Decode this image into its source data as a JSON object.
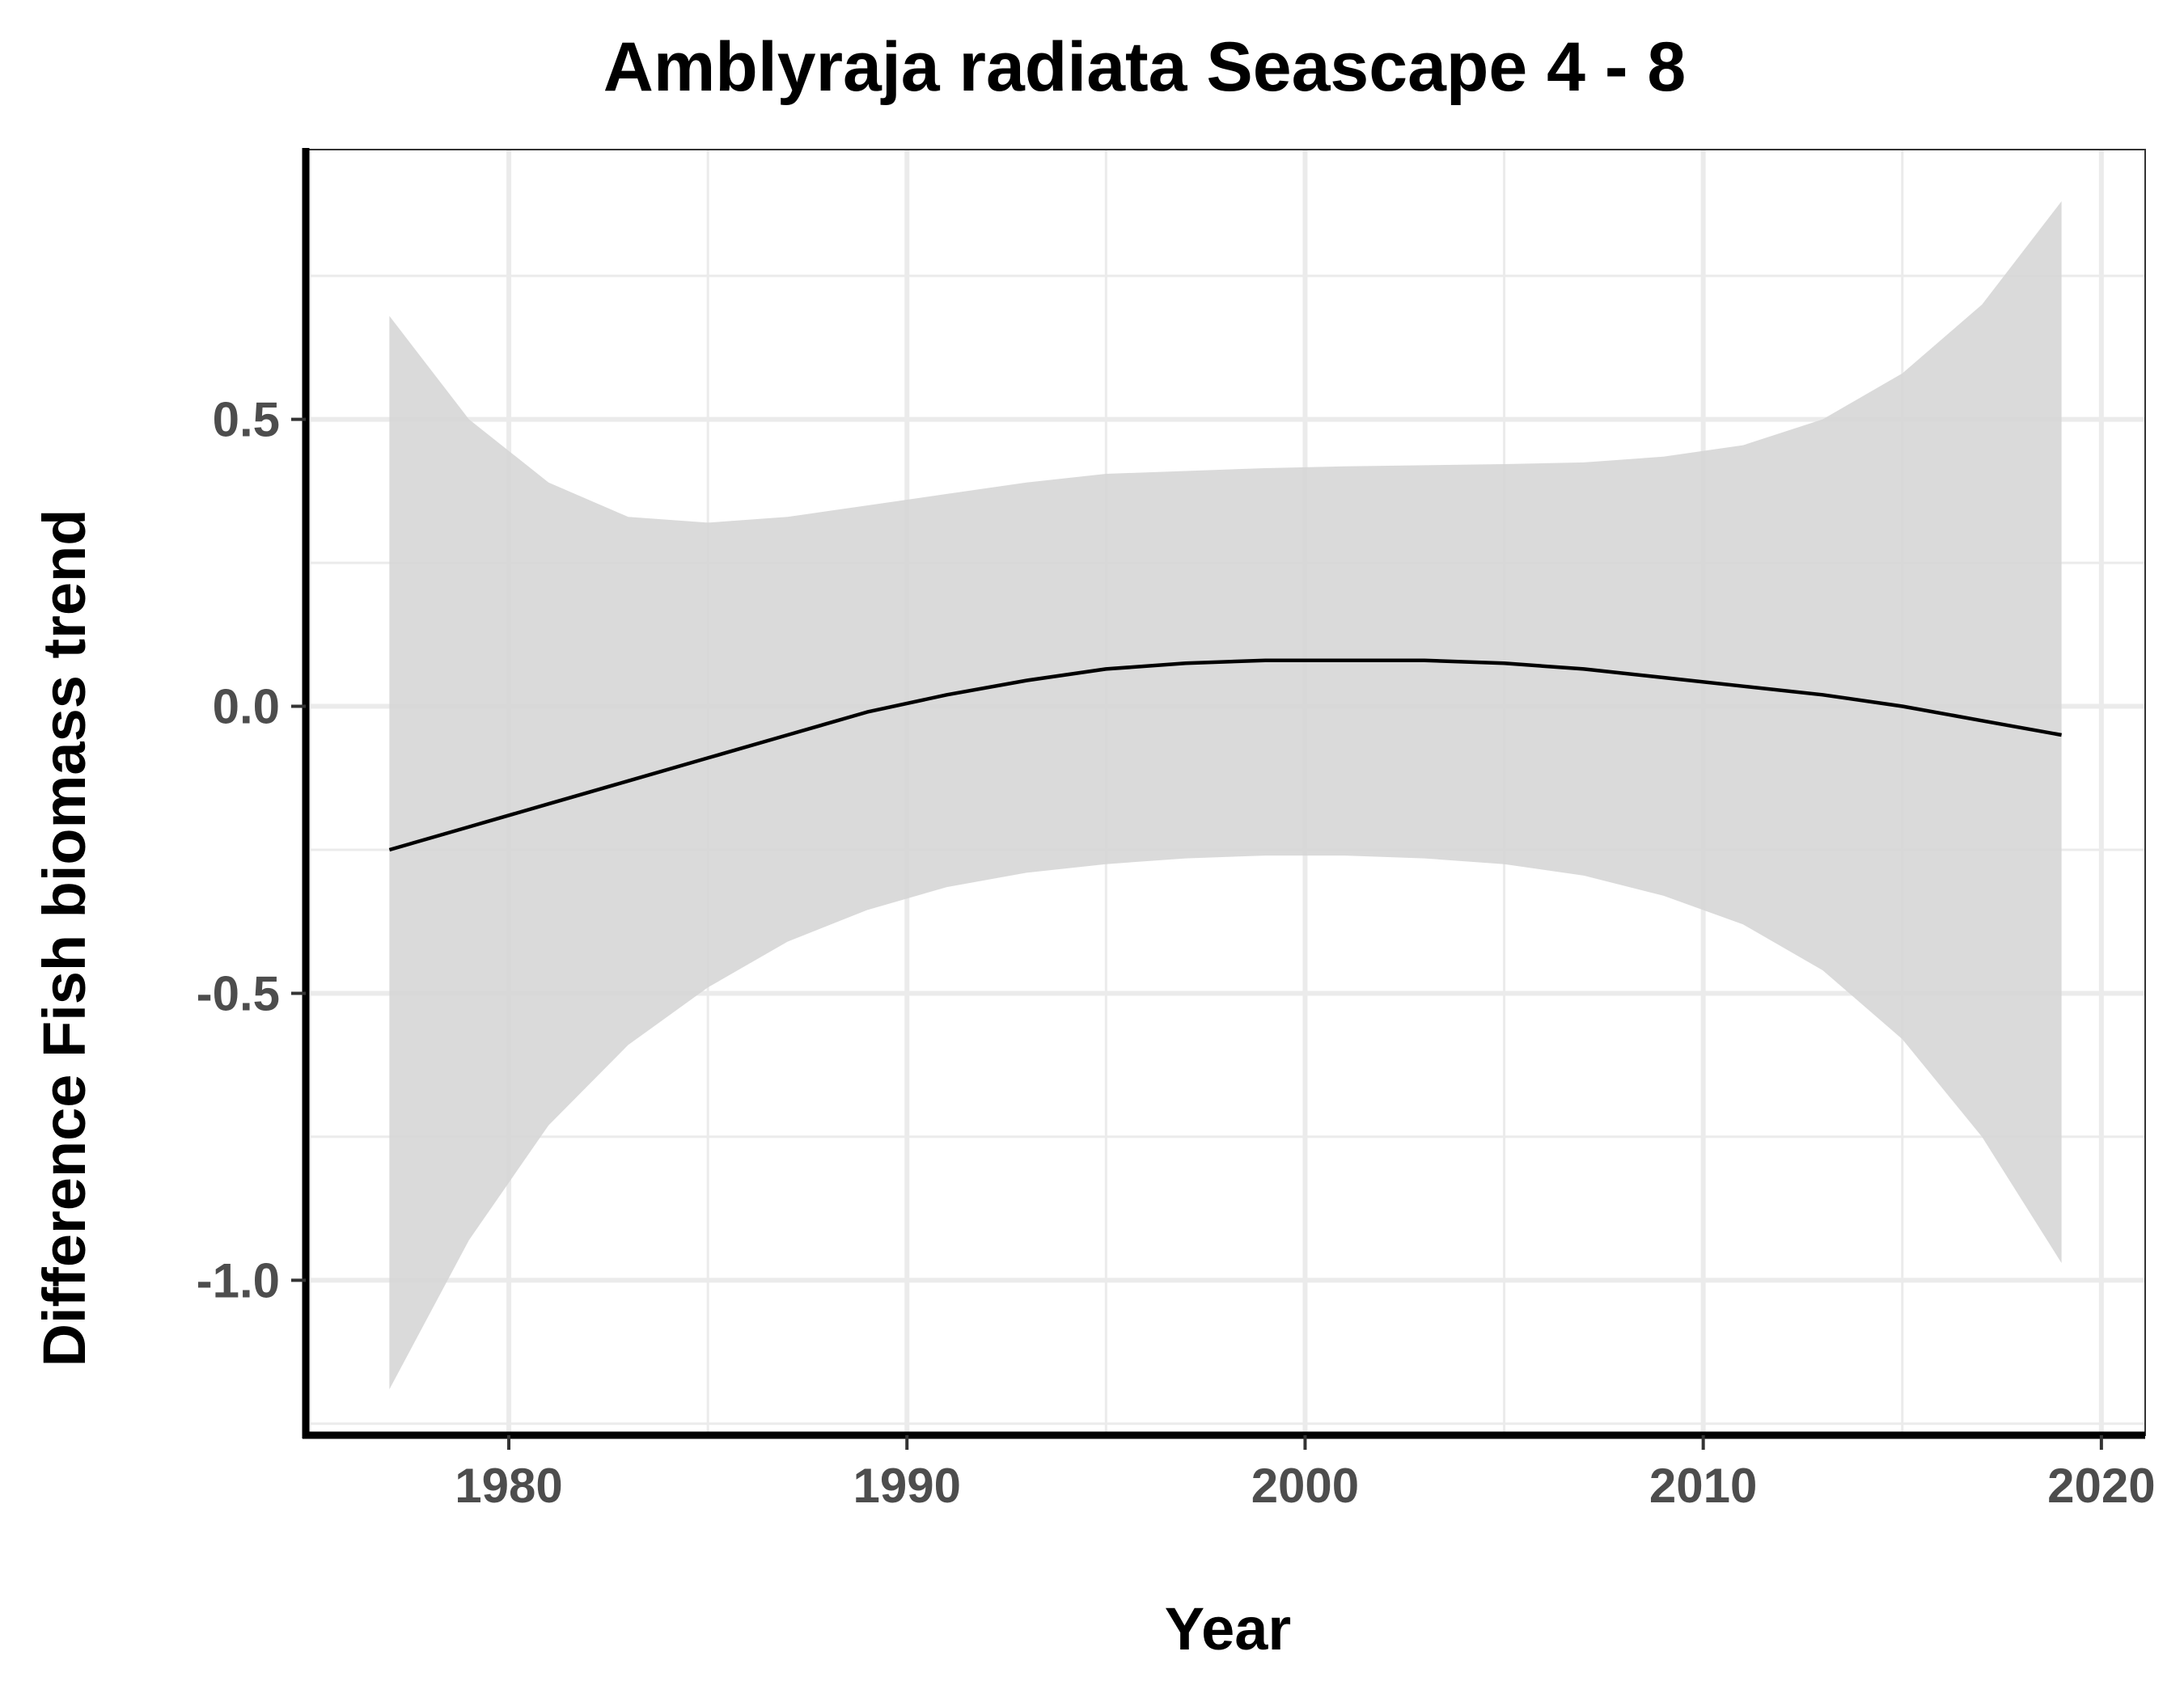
{
  "chart_data": {
    "type": "line",
    "title": "Amblyraja radiata Seascape 4 - 8",
    "xlabel": "Year",
    "ylabel": "Difference Fish biomass trend",
    "xlim": [
      1974.9,
      2021.1
    ],
    "ylim": [
      -1.27,
      0.97
    ],
    "x_ticks": [
      1980,
      1990,
      2000,
      2010,
      2020
    ],
    "x_tick_labels": [
      "1980",
      "1990",
      "2000",
      "2010",
      "2020"
    ],
    "y_ticks": [
      -1.0,
      -0.5,
      0.0,
      0.5
    ],
    "y_tick_labels": [
      "-1.0",
      "-0.5",
      "0.0",
      "0.5"
    ],
    "x_minor": [
      1975,
      1985,
      1995,
      2005,
      2015
    ],
    "y_minor": [
      -1.25,
      -0.75,
      -0.25,
      0.25,
      0.75
    ],
    "grid": true,
    "series": [
      {
        "kind": "fit",
        "x": [
          1977,
          1979,
          1981,
          1983,
          1985,
          1987,
          1989,
          1991,
          1993,
          1995,
          1997,
          1999,
          2001,
          2003,
          2005,
          2007,
          2009,
          2011,
          2013,
          2015,
          2017,
          2019
        ],
        "y": [
          -0.25,
          -0.21,
          -0.17,
          -0.13,
          -0.09,
          -0.05,
          -0.01,
          0.02,
          0.045,
          0.065,
          0.075,
          0.08,
          0.08,
          0.08,
          0.075,
          0.065,
          0.05,
          0.035,
          0.02,
          0.0,
          -0.025,
          -0.05
        ]
      },
      {
        "kind": "confidence-band",
        "x": [
          1977,
          1979,
          1981,
          1983,
          1985,
          1987,
          1989,
          1991,
          1993,
          1995,
          1997,
          1999,
          2001,
          2003,
          2005,
          2007,
          2009,
          2011,
          2013,
          2015,
          2017,
          2019
        ],
        "upper": [
          0.68,
          0.5,
          0.39,
          0.33,
          0.32,
          0.33,
          0.35,
          0.37,
          0.39,
          0.405,
          0.41,
          0.415,
          0.418,
          0.42,
          0.422,
          0.425,
          0.435,
          0.455,
          0.5,
          0.58,
          0.7,
          0.88
        ],
        "lower": [
          -1.19,
          -0.93,
          -0.73,
          -0.59,
          -0.49,
          -0.41,
          -0.355,
          -0.315,
          -0.29,
          -0.275,
          -0.265,
          -0.26,
          -0.26,
          -0.265,
          -0.275,
          -0.295,
          -0.33,
          -0.38,
          -0.46,
          -0.58,
          -0.75,
          -0.97
        ]
      }
    ],
    "colors": {
      "band": "#d6d6d6",
      "line": "#000000",
      "grid": "#ebebeb",
      "axis": "#000000",
      "tick_label": "#4d4d4d"
    }
  }
}
